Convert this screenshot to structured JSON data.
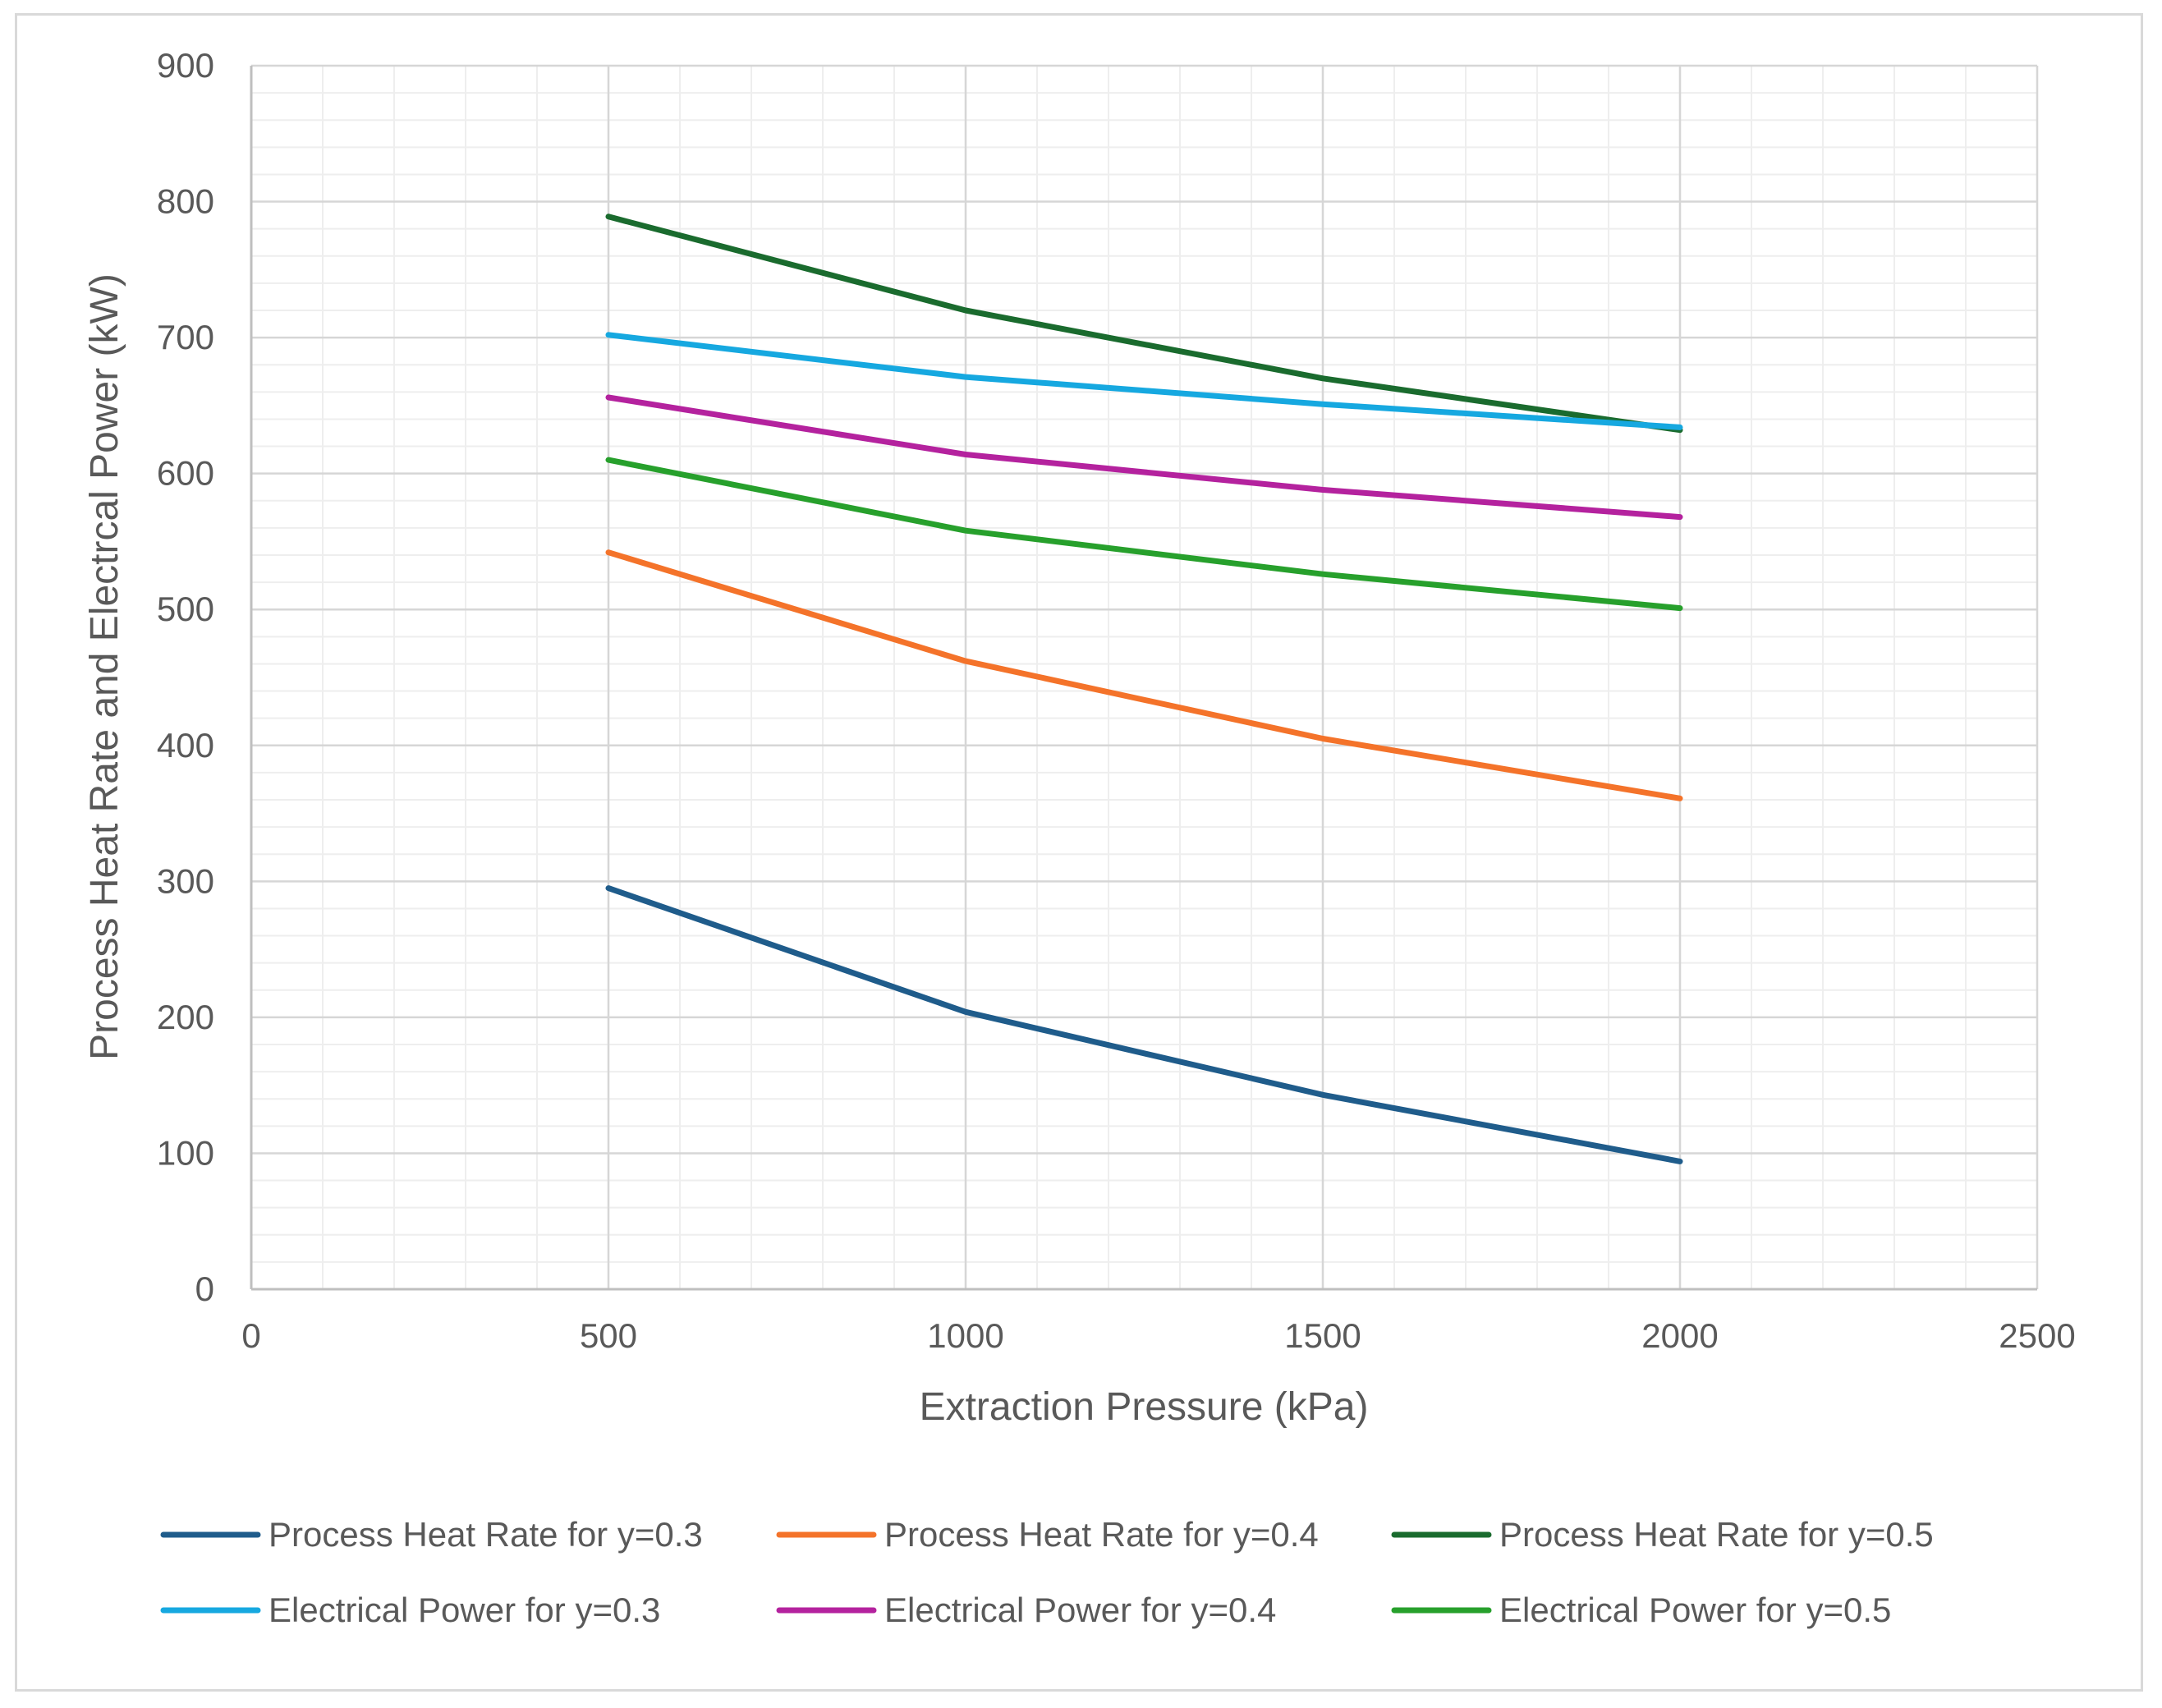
{
  "chart_data": {
    "type": "line",
    "title": "",
    "xlabel": "Extraction Pressure (kPa)",
    "ylabel": "Process Heat Rate and Electrcal Power (kW)",
    "xlim": [
      0,
      2500
    ],
    "ylim": [
      0,
      900
    ],
    "x_major_ticks": [
      0,
      500,
      1000,
      1500,
      2000,
      2500
    ],
    "y_major_ticks": [
      0,
      100,
      200,
      300,
      400,
      500,
      600,
      700,
      800,
      900
    ],
    "x_tick_labels": [
      "0",
      "500",
      "1000",
      "1500",
      "2000",
      "2500"
    ],
    "y_tick_labels": [
      "0",
      "100",
      "200",
      "300",
      "400",
      "500",
      "600",
      "700",
      "800",
      "900"
    ],
    "x_minor_step": 100,
    "y_minor_step": 20,
    "grid": true,
    "legend_position": "bottom",
    "x": [
      500,
      1000,
      1500,
      2000
    ],
    "series": [
      {
        "name": "Process Heat Rate for y=0.3",
        "color": "#1f5c8b",
        "values": [
          295,
          204,
          143,
          94
        ]
      },
      {
        "name": "Process Heat Rate for y=0.4",
        "color": "#f4732a",
        "values": [
          542,
          462,
          405,
          361
        ]
      },
      {
        "name": "Process Heat Rate for y=0.5",
        "color": "#1a6b2e",
        "values": [
          789,
          720,
          670,
          632
        ]
      },
      {
        "name": "Electrical Power for y=0.3",
        "color": "#16a8e0",
        "values": [
          702,
          671,
          651,
          634
        ]
      },
      {
        "name": "Electrical Power for y=0.4",
        "color": "#b4229e",
        "values": [
          656,
          614,
          588,
          568
        ]
      },
      {
        "name": "Electrical Power for y=0.5",
        "color": "#27a02c",
        "values": [
          610,
          558,
          526,
          501
        ]
      }
    ]
  }
}
